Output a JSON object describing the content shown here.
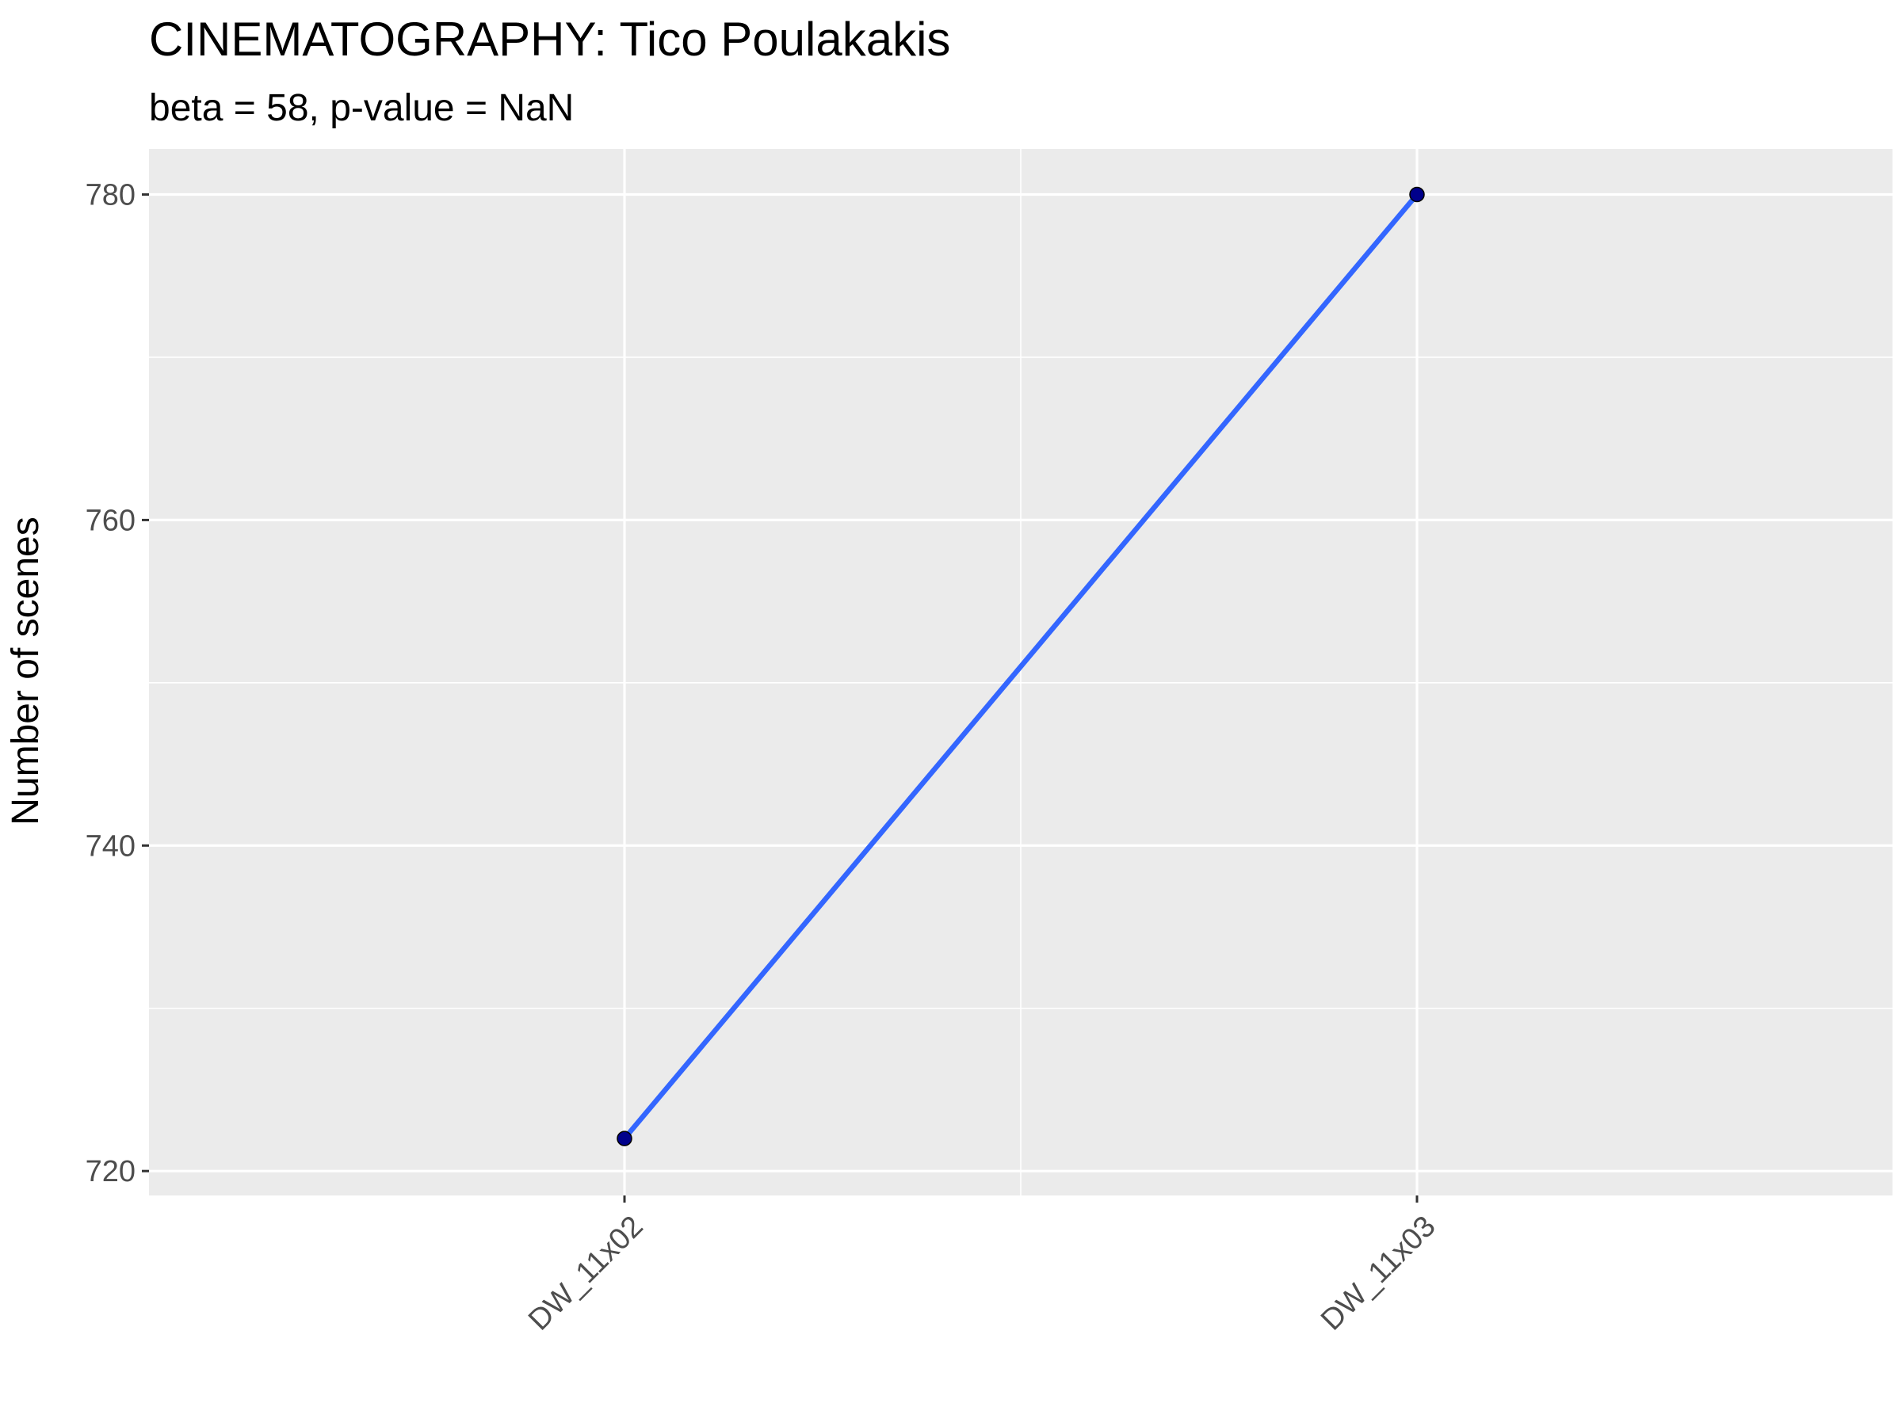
{
  "chart_data": {
    "type": "line",
    "title": "CINEMATOGRAPHY: Tico Poulakakis",
    "subtitle": "beta = 58, p-value = NaN",
    "xlabel": "",
    "ylabel": "Number of scenes",
    "categories": [
      "DW_11x02",
      "DW_11x03"
    ],
    "series": [
      {
        "values": [
          722,
          780
        ]
      }
    ],
    "ylim": [
      718.5,
      782.8
    ],
    "yticks": [
      720,
      740,
      760,
      780
    ],
    "grid": true,
    "legend": "none",
    "colors": {
      "panel": "#ebebeb",
      "grid": "#ffffff",
      "line": "#3366ff",
      "point": "#00008b",
      "axis_text": "#4d4d4d",
      "tick_mark": "#333333"
    }
  }
}
